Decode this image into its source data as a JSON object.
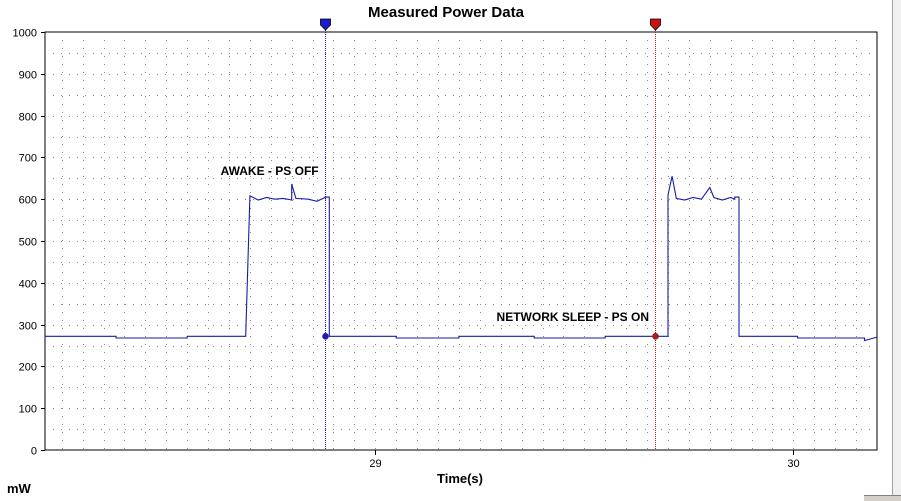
{
  "chart_data": {
    "type": "line",
    "title": "Measured Power Data",
    "xlabel": "Time(s)",
    "ylabel": "mW",
    "xlim": [
      28.21,
      30.2
    ],
    "ylim": [
      0,
      1000
    ],
    "y_ticks": [
      "0",
      "100",
      "200",
      "300",
      "400",
      "500",
      "600",
      "700",
      "800",
      "900",
      "1000"
    ],
    "x_ticks": [
      {
        "value": 29,
        "label": "29"
      },
      {
        "value": 30,
        "label": "30"
      }
    ],
    "grid": true,
    "series": [
      {
        "color": "#1a1aaa",
        "x": [
          28.21,
          28.38,
          28.38,
          28.55,
          28.55,
          28.69,
          28.7,
          28.72,
          28.74,
          28.76,
          28.78,
          28.8,
          28.8,
          28.81,
          28.84,
          28.86,
          28.88,
          28.88,
          28.89,
          28.89,
          29.05,
          29.05,
          29.2,
          29.2,
          29.38,
          29.38,
          29.55,
          29.55,
          29.7,
          29.7,
          29.71,
          29.72,
          29.74,
          29.76,
          29.78,
          29.8,
          29.81,
          29.83,
          29.85,
          29.86,
          29.86,
          29.87,
          29.87,
          30.01,
          30.01,
          30.17,
          30.17,
          30.2
        ],
        "y": [
          272,
          272,
          268,
          268,
          272,
          272,
          608,
          598,
          604,
          600,
          602,
          598,
          636,
          602,
          600,
          595,
          604,
          605,
          605,
          272,
          272,
          268,
          268,
          272,
          272,
          268,
          268,
          272,
          272,
          610,
          655,
          602,
          598,
          604,
          600,
          628,
          604,
          598,
          604,
          600,
          605,
          605,
          272,
          272,
          268,
          268,
          262,
          270
        ]
      }
    ],
    "markers": [
      {
        "x": 28.88,
        "y": 272,
        "color": "#1a1ad0"
      },
      {
        "x": 29.67,
        "y": 272,
        "color": "#cc1111"
      }
    ],
    "annotations": [
      {
        "text": "AWAKE - PS OFF",
        "x": 28.63,
        "y": 668
      },
      {
        "text": "NETWORK SLEEP - PS  ON",
        "x": 29.29,
        "y": 318
      }
    ]
  }
}
